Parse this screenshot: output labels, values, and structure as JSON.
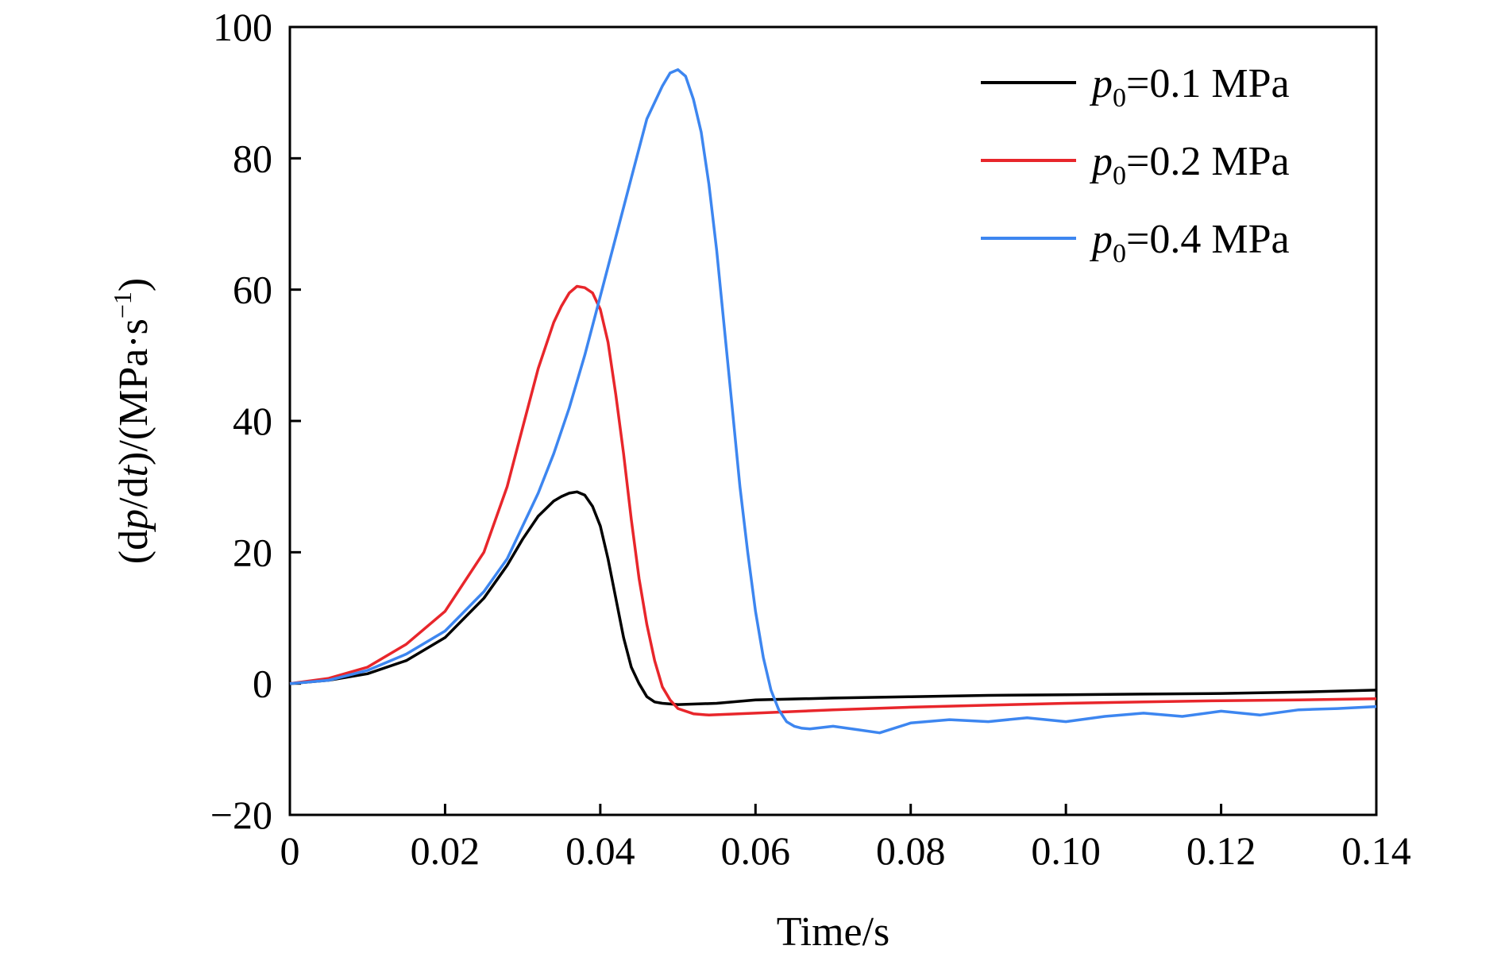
{
  "chart_data": {
    "type": "line",
    "xlabel": "Time/s",
    "ylabel": "(dp/dt)/(MPa·s⁻¹)",
    "ylabel_parts": {
      "a": "(d",
      "p": "p",
      "b": "/d",
      "t": "t",
      "c": ")/(MPa·s",
      "sup": "−1",
      "d": ")"
    },
    "xlim": [
      0,
      0.14
    ],
    "ylim": [
      -20,
      100
    ],
    "x_ticks": [
      0,
      0.02,
      0.04,
      0.06,
      0.08,
      0.1,
      0.12,
      0.14
    ],
    "x_tick_labels": [
      "0",
      "0.02",
      "0.04",
      "0.06",
      "0.08",
      "0.10",
      "0.12",
      "0.14"
    ],
    "y_ticks": [
      -20,
      0,
      20,
      40,
      60,
      80,
      100
    ],
    "y_tick_labels": [
      "−20",
      "0",
      "20",
      "40",
      "60",
      "80",
      "100"
    ],
    "grid": false,
    "legend_position": "top-right",
    "series": [
      {
        "name": "p0=0.1 MPa",
        "legend": {
          "p": "p",
          "sub": "0",
          "rest": "=0.1 MPa"
        },
        "color": "#000000",
        "x": [
          0,
          0.005,
          0.01,
          0.015,
          0.02,
          0.025,
          0.028,
          0.03,
          0.032,
          0.034,
          0.035,
          0.036,
          0.037,
          0.038,
          0.039,
          0.04,
          0.041,
          0.042,
          0.043,
          0.044,
          0.045,
          0.046,
          0.047,
          0.048,
          0.05,
          0.055,
          0.06,
          0.07,
          0.08,
          0.09,
          0.1,
          0.11,
          0.12,
          0.13,
          0.14
        ],
        "y": [
          0,
          0.5,
          1.5,
          3.5,
          7,
          13,
          18,
          22,
          25.5,
          27.8,
          28.5,
          29,
          29.2,
          28.7,
          27,
          24,
          19,
          13,
          7,
          2.5,
          0,
          -2,
          -2.8,
          -3,
          -3.2,
          -3,
          -2.5,
          -2.2,
          -2,
          -1.8,
          -1.7,
          -1.6,
          -1.5,
          -1.3,
          -1
        ]
      },
      {
        "name": "p0=0.2 MPa",
        "legend": {
          "p": "p",
          "sub": "0",
          "rest": "=0.2 MPa"
        },
        "color": "#e8262b",
        "x": [
          0,
          0.005,
          0.01,
          0.015,
          0.02,
          0.025,
          0.028,
          0.03,
          0.032,
          0.034,
          0.035,
          0.036,
          0.037,
          0.038,
          0.039,
          0.04,
          0.041,
          0.042,
          0.043,
          0.044,
          0.045,
          0.046,
          0.047,
          0.048,
          0.049,
          0.05,
          0.052,
          0.054,
          0.06,
          0.07,
          0.08,
          0.09,
          0.1,
          0.11,
          0.12,
          0.13,
          0.14
        ],
        "y": [
          0,
          0.8,
          2.5,
          6,
          11,
          20,
          30,
          39,
          48,
          55,
          57.5,
          59.5,
          60.5,
          60.3,
          59.5,
          57,
          52,
          44,
          35,
          25,
          16,
          9,
          3.5,
          -0.5,
          -2.5,
          -3.8,
          -4.6,
          -4.8,
          -4.5,
          -4,
          -3.6,
          -3.3,
          -3,
          -2.8,
          -2.6,
          -2.5,
          -2.3
        ]
      },
      {
        "name": "p0=0.4 MPa",
        "legend": {
          "p": "p",
          "sub": "0",
          "rest": "=0.4 MPa"
        },
        "color": "#3d86f0",
        "x": [
          0,
          0.005,
          0.01,
          0.015,
          0.02,
          0.025,
          0.028,
          0.03,
          0.032,
          0.034,
          0.036,
          0.038,
          0.04,
          0.042,
          0.044,
          0.046,
          0.048,
          0.049,
          0.05,
          0.051,
          0.052,
          0.053,
          0.054,
          0.055,
          0.056,
          0.057,
          0.058,
          0.059,
          0.06,
          0.061,
          0.062,
          0.063,
          0.064,
          0.065,
          0.066,
          0.067,
          0.07,
          0.073,
          0.076,
          0.08,
          0.085,
          0.09,
          0.095,
          0.1,
          0.105,
          0.11,
          0.115,
          0.12,
          0.125,
          0.13,
          0.135,
          0.14
        ],
        "y": [
          0,
          0.5,
          2,
          4.5,
          8,
          14,
          19,
          24,
          29,
          35,
          42,
          50,
          59,
          68,
          77,
          86,
          91,
          93,
          93.5,
          92.5,
          89,
          84,
          76,
          66,
          54,
          42,
          30,
          20,
          11,
          4,
          -1,
          -4,
          -5.8,
          -6.5,
          -6.8,
          -6.9,
          -6.5,
          -7,
          -7.5,
          -6,
          -5.5,
          -5.8,
          -5.2,
          -5.8,
          -5,
          -4.5,
          -5,
          -4.2,
          -4.8,
          -4,
          -3.8,
          -3.5
        ]
      }
    ]
  }
}
